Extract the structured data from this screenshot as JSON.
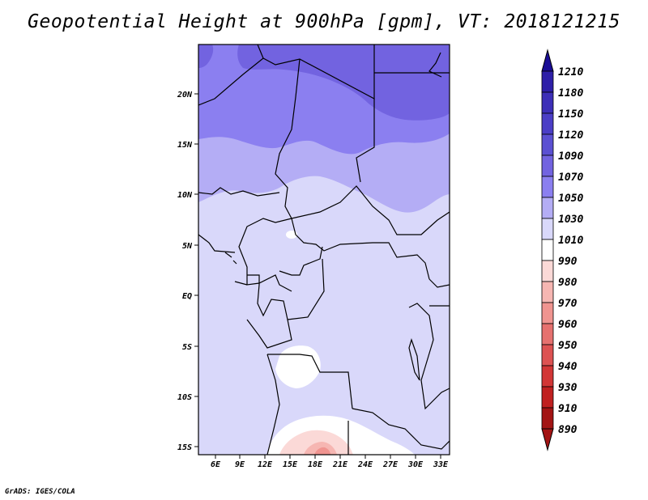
{
  "title": "Geopotential Height at 900hPa [gpm], VT: 2018121215",
  "credit": "GrADS: IGES/COLA",
  "map": {
    "lon_ticks": [
      "6E",
      "9E",
      "12E",
      "15E",
      "18E",
      "21E",
      "24E",
      "27E",
      "30E",
      "33E"
    ],
    "lat_ticks": [
      "20N",
      "15N",
      "10N",
      "5N",
      "EQ",
      "5S",
      "10S",
      "15S"
    ]
  },
  "colorbar": {
    "levels": [
      "1210",
      "1180",
      "1150",
      "1120",
      "1090",
      "1070",
      "1050",
      "1030",
      "1010",
      "990",
      "980",
      "970",
      "960",
      "950",
      "940",
      "930",
      "910",
      "890"
    ],
    "colors": [
      "#1a0d96",
      "#2e1fa8",
      "#3d2fb8",
      "#4b3ec6",
      "#5b50d2",
      "#7263e0",
      "#8b7ff0",
      "#b4adf5",
      "#d9d8fa",
      "#ffffff",
      "#fbd9d7",
      "#f6b6b2",
      "#f09490",
      "#e6716f",
      "#dd5252",
      "#d23636",
      "#c02020",
      "#a31414"
    ]
  }
}
